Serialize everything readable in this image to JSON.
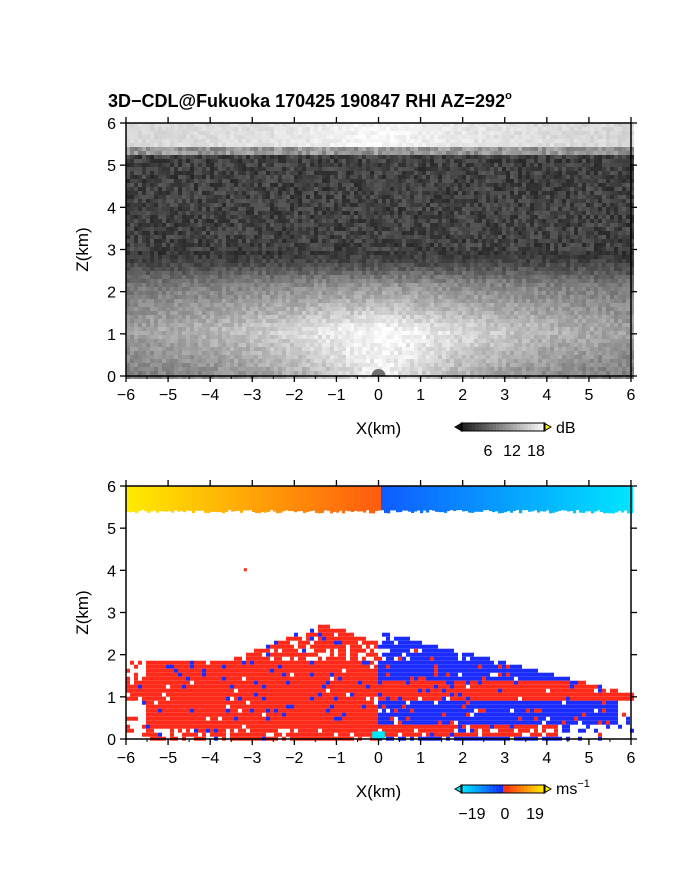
{
  "figure": {
    "title_main": "3D−CDL@Fukuoka 170425 190847 RHI AZ=292",
    "title_sup": "o"
  },
  "colors": {
    "background": "#ffffff",
    "axis": "#000000",
    "reflectivity_bg_dark": "#2b2b2b",
    "reflectivity_bright": "#f0f0f0",
    "velocity_positive": "#ff2a1a",
    "velocity_negative": "#1a2cff",
    "velocity_pos_far": "#ffee00",
    "velocity_neg_far": "#00e8ff"
  },
  "chart_data": [
    {
      "type": "heatmap",
      "name": "reflectivity",
      "xlabel": "X(km)",
      "ylabel": "Z(km)",
      "xlim": [
        -6,
        6
      ],
      "ylim": [
        0,
        6
      ],
      "xticks": [
        -6,
        -5,
        -4,
        -3,
        -2,
        -1,
        0,
        1,
        2,
        3,
        4,
        5,
        6
      ],
      "yticks": [
        0,
        1,
        2,
        3,
        4,
        5,
        6
      ],
      "colorbar": {
        "unit": "dB",
        "ticks": [
          6,
          12,
          18
        ]
      },
      "layers": [
        {
          "label": "upper bright layer",
          "z_range": [
            5.35,
            6
          ],
          "level_db": 14
        },
        {
          "label": "dark noise",
          "z_range": [
            3.0,
            5.35
          ],
          "level_db": 3
        },
        {
          "label": "boundary layer",
          "z_range": [
            0,
            2.9
          ],
          "level_db": 10
        },
        {
          "label": "near-radar peak",
          "z_range": [
            0,
            0.8
          ],
          "level_db": 18
        }
      ]
    },
    {
      "type": "heatmap",
      "name": "doppler_velocity",
      "xlabel": "X(km)",
      "ylabel": "Z(km)",
      "xlim": [
        -6,
        6
      ],
      "ylim": [
        0,
        6
      ],
      "xticks": [
        -6,
        -5,
        -4,
        -3,
        -2,
        -1,
        0,
        1,
        2,
        3,
        4,
        5,
        6
      ],
      "yticks": [
        0,
        1,
        2,
        3,
        4,
        5,
        6
      ],
      "colorbar": {
        "unit": "ms",
        "unit_sup": "−1",
        "ticks": [
          -19,
          0,
          19
        ]
      },
      "regions": [
        {
          "label": "upper layer west",
          "x_range": [
            -6,
            0
          ],
          "z_range": [
            5.3,
            6
          ],
          "velocity": [
            19,
            5
          ]
        },
        {
          "label": "upper layer east",
          "x_range": [
            0,
            6
          ],
          "z_range": [
            5.3,
            6
          ],
          "velocity": [
            -5,
            -19
          ]
        },
        {
          "label": "boundary layer west",
          "x_range": [
            -5.9,
            0
          ],
          "z_range": [
            0.2,
            2.8
          ],
          "velocity": 4
        },
        {
          "label": "boundary layer east (receding)",
          "x_range": [
            0,
            5.8
          ],
          "z_range": [
            0.3,
            2.6
          ],
          "velocity": -4
        },
        {
          "label": "jet layer east",
          "x_range": [
            0,
            6
          ],
          "z_range": [
            1.0,
            1.45
          ],
          "velocity": 4
        },
        {
          "label": "surface layer east",
          "x_range": [
            0,
            4.2
          ],
          "z_range": [
            0.15,
            0.35
          ],
          "velocity": 4
        },
        {
          "label": "near-radar",
          "x_range": [
            -0.15,
            0.15
          ],
          "z_range": [
            0,
            0.1
          ],
          "velocity": -18
        }
      ]
    }
  ]
}
